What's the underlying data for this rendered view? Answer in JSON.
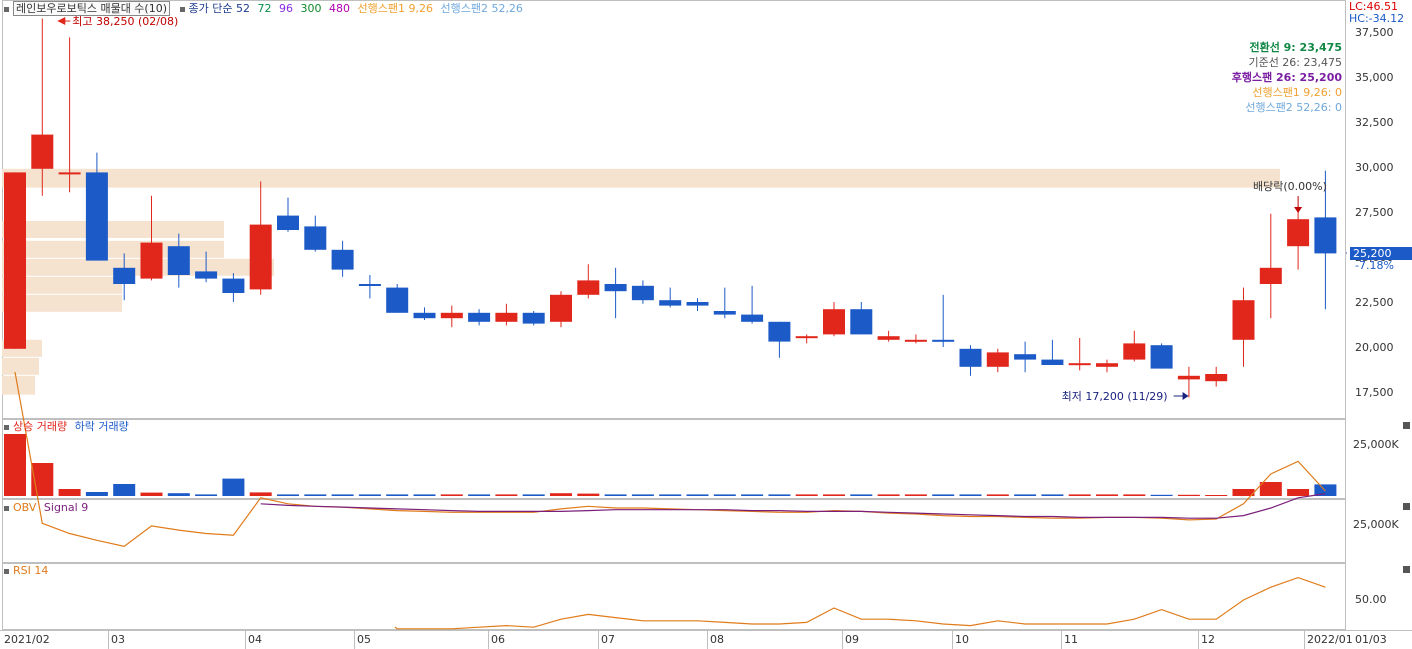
{
  "main_legend": {
    "stock_label": "레인보우로보틱스 매물대 수(10)",
    "ma_label": "종가 단순 52",
    "ma_periods": [
      "72",
      "96",
      "300",
      "480"
    ],
    "span1_label": "선행스팬1 9,26",
    "span2_label": "선행스팬2 52,26"
  },
  "top_right": {
    "lc": "LC:46.51",
    "hc": "HC:-34.12"
  },
  "ichimoku_values": [
    {
      "text": "전환선 9: 23,475",
      "color": "#118844"
    },
    {
      "text": "기준선 26: 23,475",
      "color": "#555555"
    },
    {
      "text": "후행스팬 26: 25,200",
      "color": "#7b1fa2"
    },
    {
      "text": "선행스팬1 9,26: 0",
      "color": "#f0a030"
    },
    {
      "text": "선행스팬2 52,26: 0",
      "color": "#6fa8dc"
    }
  ],
  "annotations": {
    "high": "최고 38,250 (02/08)",
    "low": "최저 17,200 (11/29)",
    "dividend": "배당락(0.00%)",
    "current_price": "25,200",
    "current_change": "-7.18%"
  },
  "price_axis_ticks": [
    "37,500",
    "35,000",
    "32,500",
    "30,000",
    "27,500",
    "25,000",
    "22,500",
    "20,000",
    "17,500"
  ],
  "volume_legend": {
    "up": "상승 거래량",
    "down": "하락 거래량"
  },
  "volume_axis_tick": "25,000K",
  "obv_legend": {
    "obv": "OBV",
    "signal": "Signal 9"
  },
  "obv_axis_tick": "25,000K",
  "rsi_legend": {
    "rsi": "RSI 14"
  },
  "rsi_axis_tick": "50.00",
  "x_axis_labels": [
    "2021/02",
    "03",
    "04",
    "05",
    "06",
    "07",
    "08",
    "09",
    "10",
    "11",
    "12",
    "2022/01",
    "01/03"
  ],
  "colors": {
    "up": "#e1261c",
    "down": "#1c5ac8",
    "obv": "#e07b1a",
    "signal": "#7b1f7b",
    "rsi": "#e07b1a",
    "profile": "#f5e3d0"
  },
  "chart_data": {
    "type": "candlestick",
    "period": "weekly",
    "y_range": [
      16800,
      38500
    ],
    "candles": [
      {
        "o": 19900,
        "h": 29700,
        "l": 19900,
        "c": 29700
      },
      {
        "o": 29900,
        "h": 38250,
        "l": 28400,
        "c": 31800
      },
      {
        "o": 29700,
        "h": 37200,
        "l": 28600,
        "c": 29700
      },
      {
        "o": 29700,
        "h": 30800,
        "l": 24800,
        "c": 24800
      },
      {
        "o": 24400,
        "h": 25200,
        "l": 22600,
        "c": 23500
      },
      {
        "o": 23800,
        "h": 28400,
        "l": 23700,
        "c": 25800
      },
      {
        "o": 25600,
        "h": 26300,
        "l": 23300,
        "c": 24000
      },
      {
        "o": 24200,
        "h": 25300,
        "l": 23600,
        "c": 23800
      },
      {
        "o": 23800,
        "h": 24100,
        "l": 22500,
        "c": 23000
      },
      {
        "o": 23200,
        "h": 29200,
        "l": 22900,
        "c": 26800
      },
      {
        "o": 27300,
        "h": 28300,
        "l": 26400,
        "c": 26500
      },
      {
        "o": 26700,
        "h": 27300,
        "l": 25300,
        "c": 25400
      },
      {
        "o": 25400,
        "h": 25900,
        "l": 23900,
        "c": 24300
      },
      {
        "o": 23500,
        "h": 24000,
        "l": 22700,
        "c": 23400
      },
      {
        "o": 23300,
        "h": 23500,
        "l": 21900,
        "c": 21900
      },
      {
        "o": 21900,
        "h": 22200,
        "l": 21500,
        "c": 21600
      },
      {
        "o": 21600,
        "h": 22300,
        "l": 21100,
        "c": 21900
      },
      {
        "o": 21900,
        "h": 22100,
        "l": 21200,
        "c": 21400
      },
      {
        "o": 21400,
        "h": 22400,
        "l": 21200,
        "c": 21900
      },
      {
        "o": 21900,
        "h": 22000,
        "l": 21200,
        "c": 21300
      },
      {
        "o": 21400,
        "h": 23100,
        "l": 21100,
        "c": 22900
      },
      {
        "o": 22900,
        "h": 24600,
        "l": 22700,
        "c": 23700
      },
      {
        "o": 23500,
        "h": 24400,
        "l": 21600,
        "c": 23100
      },
      {
        "o": 23400,
        "h": 23700,
        "l": 22400,
        "c": 22600
      },
      {
        "o": 22600,
        "h": 23300,
        "l": 22200,
        "c": 22300
      },
      {
        "o": 22500,
        "h": 22700,
        "l": 22000,
        "c": 22300
      },
      {
        "o": 22000,
        "h": 23300,
        "l": 21600,
        "c": 21800
      },
      {
        "o": 21800,
        "h": 23400,
        "l": 21300,
        "c": 21400
      },
      {
        "o": 21400,
        "h": 21400,
        "l": 19400,
        "c": 20300
      },
      {
        "o": 20500,
        "h": 20700,
        "l": 20200,
        "c": 20600
      },
      {
        "o": 20700,
        "h": 22500,
        "l": 20600,
        "c": 22100
      },
      {
        "o": 22100,
        "h": 22500,
        "l": 20700,
        "c": 20700
      },
      {
        "o": 20400,
        "h": 20900,
        "l": 20300,
        "c": 20600
      },
      {
        "o": 20400,
        "h": 20700,
        "l": 20200,
        "c": 20400
      },
      {
        "o": 20400,
        "h": 22900,
        "l": 20000,
        "c": 20300
      },
      {
        "o": 19900,
        "h": 20100,
        "l": 18400,
        "c": 18900
      },
      {
        "o": 18900,
        "h": 19900,
        "l": 18600,
        "c": 19700
      },
      {
        "o": 19600,
        "h": 20300,
        "l": 18600,
        "c": 19300
      },
      {
        "o": 19300,
        "h": 20400,
        "l": 19000,
        "c": 19000
      },
      {
        "o": 19100,
        "h": 20500,
        "l": 18700,
        "c": 19100
      },
      {
        "o": 18900,
        "h": 19300,
        "l": 18600,
        "c": 19100
      },
      {
        "o": 19300,
        "h": 20900,
        "l": 19200,
        "c": 20200
      },
      {
        "o": 20100,
        "h": 20200,
        "l": 18800,
        "c": 18800
      },
      {
        "o": 18200,
        "h": 18900,
        "l": 17200,
        "c": 18400
      },
      {
        "o": 18100,
        "h": 18900,
        "l": 17800,
        "c": 18500
      },
      {
        "o": 20400,
        "h": 23300,
        "l": 18900,
        "c": 22600
      },
      {
        "o": 23500,
        "h": 27400,
        "l": 21600,
        "c": 24400
      },
      {
        "o": 25600,
        "h": 27800,
        "l": 24300,
        "c": 27100
      },
      {
        "o": 27200,
        "h": 29800,
        "l": 22100,
        "c": 25200
      }
    ],
    "volume_profile": [
      {
        "price_low": 17300,
        "price_high": 18400,
        "value": 33
      },
      {
        "price_low": 18400,
        "price_high": 19400,
        "value": 37
      },
      {
        "price_low": 19400,
        "price_high": 20400,
        "value": 40
      },
      {
        "price_low": 21900,
        "price_high": 22900,
        "value": 120
      },
      {
        "price_low": 22900,
        "price_high": 23900,
        "value": 120
      },
      {
        "price_low": 23900,
        "price_high": 24900,
        "value": 272
      },
      {
        "price_low": 24900,
        "price_high": 25900,
        "value": 222
      },
      {
        "price_low": 26000,
        "price_high": 27000,
        "value": 222
      },
      {
        "price_low": 28800,
        "price_high": 29900,
        "value": 1278
      }
    ],
    "volume": [
      31000,
      16500,
      3500,
      2000,
      6000,
      1700,
      1400,
      800,
      8700,
      1800,
      800,
      800,
      800,
      800,
      800,
      800,
      800,
      800,
      800,
      800,
      1400,
      1200,
      800,
      800,
      800,
      800,
      800,
      800,
      800,
      800,
      800,
      800,
      800,
      800,
      800,
      800,
      800,
      800,
      800,
      800,
      800,
      800,
      600,
      600,
      500,
      3500,
      7000,
      3500,
      5800
    ],
    "obv": [
      43000,
      25200,
      24000,
      23200,
      22500,
      24900,
      24400,
      24000,
      23800,
      28200,
      27500,
      27200,
      27100,
      26900,
      26700,
      26600,
      26500,
      26500,
      26500,
      26500,
      26900,
      27200,
      27000,
      27000,
      26900,
      26800,
      26700,
      26600,
      26500,
      26500,
      26700,
      26600,
      26400,
      26300,
      26100,
      26000,
      26000,
      25900,
      25800,
      25800,
      25900,
      25900,
      25800,
      25600,
      25700,
      27500,
      31000,
      32500,
      29000
    ],
    "obv_signal": [
      null,
      null,
      null,
      null,
      null,
      null,
      null,
      null,
      null,
      27500,
      27300,
      27200,
      27100,
      27000,
      26900,
      26800,
      26700,
      26600,
      26600,
      26600,
      26600,
      26700,
      26800,
      26800,
      26800,
      26800,
      26800,
      26700,
      26700,
      26600,
      26600,
      26600,
      26500,
      26400,
      26300,
      26200,
      26100,
      26000,
      26000,
      25900,
      25900,
      25900,
      25900,
      25800,
      25800,
      26100,
      27000,
      28200,
      28700
    ],
    "rsi": [
      null,
      null,
      null,
      null,
      null,
      null,
      null,
      null,
      null,
      null,
      null,
      null,
      null,
      null,
      32,
      32,
      32,
      33,
      34,
      33,
      38,
      41,
      39,
      37,
      37,
      37,
      36,
      35,
      35,
      36,
      45,
      38,
      38,
      37,
      35,
      34,
      37,
      35,
      35,
      35,
      35,
      38,
      44,
      38,
      38,
      50,
      58,
      64,
      58
    ]
  }
}
